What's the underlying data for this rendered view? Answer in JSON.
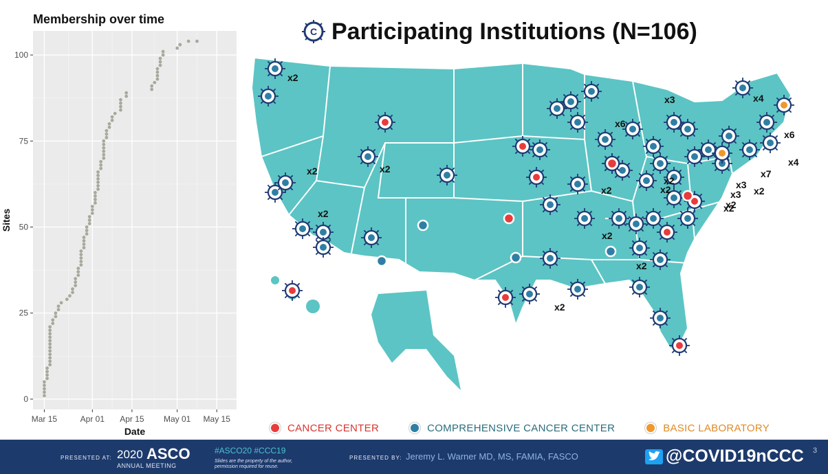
{
  "chart_data": {
    "type": "scatter",
    "title": "Membership over time",
    "xlabel": "Date",
    "ylabel": "Sites",
    "x_ticks": [
      "Mar 15",
      "Apr 01",
      "Apr 15",
      "May 01",
      "May 15"
    ],
    "x_tick_values": [
      "2020-03-15",
      "2020-04-01",
      "2020-04-15",
      "2020-05-01",
      "2020-05-15"
    ],
    "xlim": [
      "2020-03-11",
      "2020-05-22"
    ],
    "y_ticks": [
      0,
      25,
      50,
      75,
      100
    ],
    "ylim": [
      -3,
      107
    ],
    "grid": true,
    "x": [
      "2020-03-15",
      "2020-03-15",
      "2020-03-15",
      "2020-03-15",
      "2020-03-15",
      "2020-03-16",
      "2020-03-16",
      "2020-03-16",
      "2020-03-16",
      "2020-03-17",
      "2020-03-17",
      "2020-03-17",
      "2020-03-17",
      "2020-03-17",
      "2020-03-17",
      "2020-03-17",
      "2020-03-17",
      "2020-03-17",
      "2020-03-17",
      "2020-03-17",
      "2020-03-17",
      "2020-03-18",
      "2020-03-18",
      "2020-03-19",
      "2020-03-19",
      "2020-03-20",
      "2020-03-20",
      "2020-03-21",
      "2020-03-23",
      "2020-03-24",
      "2020-03-25",
      "2020-03-25",
      "2020-03-26",
      "2020-03-26",
      "2020-03-26",
      "2020-03-27",
      "2020-03-27",
      "2020-03-27",
      "2020-03-28",
      "2020-03-28",
      "2020-03-28",
      "2020-03-28",
      "2020-03-28",
      "2020-03-29",
      "2020-03-29",
      "2020-03-29",
      "2020-03-29",
      "2020-03-30",
      "2020-03-30",
      "2020-03-30",
      "2020-03-31",
      "2020-03-31",
      "2020-03-31",
      "2020-04-01",
      "2020-04-01",
      "2020-04-01",
      "2020-04-02",
      "2020-04-02",
      "2020-04-02",
      "2020-04-02",
      "2020-04-03",
      "2020-04-03",
      "2020-04-03",
      "2020-04-03",
      "2020-04-03",
      "2020-04-03",
      "2020-04-04",
      "2020-04-04",
      "2020-04-04",
      "2020-04-05",
      "2020-04-05",
      "2020-04-05",
      "2020-04-05",
      "2020-04-05",
      "2020-04-05",
      "2020-04-06",
      "2020-04-06",
      "2020-04-06",
      "2020-04-07",
      "2020-04-07",
      "2020-04-08",
      "2020-04-08",
      "2020-04-09",
      "2020-04-11",
      "2020-04-11",
      "2020-04-11",
      "2020-04-11",
      "2020-04-13",
      "2020-04-13",
      "2020-04-22",
      "2020-04-22",
      "2020-04-23",
      "2020-04-24",
      "2020-04-24",
      "2020-04-24",
      "2020-04-24",
      "2020-04-25",
      "2020-04-25",
      "2020-04-25",
      "2020-04-26",
      "2020-04-26",
      "2020-05-01",
      "2020-05-02",
      "2020-05-02",
      "2020-05-05",
      "2020-05-08"
    ],
    "y": [
      1,
      2,
      3,
      4,
      5,
      6,
      7,
      8,
      9,
      10,
      11,
      12,
      13,
      14,
      15,
      16,
      17,
      18,
      19,
      20,
      21,
      22,
      23,
      24,
      25,
      26,
      27,
      28,
      29,
      30,
      31,
      32,
      33,
      34,
      35,
      36,
      37,
      38,
      39,
      40,
      41,
      42,
      43,
      44,
      45,
      46,
      47,
      48,
      49,
      50,
      51,
      52,
      53,
      54,
      55,
      56,
      57,
      58,
      59,
      60,
      61,
      62,
      63,
      64,
      65,
      66,
      67,
      68,
      69,
      70,
      71,
      72,
      73,
      74,
      75,
      76,
      77,
      78,
      79,
      80,
      81,
      82,
      83,
      84,
      85,
      86,
      87,
      88,
      89,
      90,
      91,
      92,
      93,
      94,
      95,
      96,
      97,
      98,
      99,
      100,
      101,
      102,
      103,
      103,
      104,
      104
    ]
  },
  "slide": {
    "title": "Participating Institutions (N=106)",
    "logo_text": "C",
    "logo_sub": "19",
    "legend": [
      {
        "label": "CANCER CENTER",
        "color": "#e83b3b",
        "text_color": "#d8352f"
      },
      {
        "label": "COMPREHENSIVE CANCER CENTER",
        "color": "#2f7fa5",
        "text_color": "#2a6d7d"
      },
      {
        "label": "BASIC LABORATORY",
        "color": "#f0982c",
        "text_color": "#e08a26"
      }
    ],
    "map_multipliers": [
      "x2",
      "x2",
      "x2",
      "x2",
      "x2",
      "x3",
      "x6",
      "x4",
      "x6",
      "x4",
      "x7",
      "x3",
      "x3",
      "x2",
      "x2",
      "x2",
      "x2",
      "x2",
      "x2",
      "x2",
      "x2"
    ],
    "map_colors": {
      "land": "#5cc4c4",
      "border": "#ffffff",
      "marker_ring": "#1e3a73"
    }
  },
  "footer": {
    "presented_at": "PRESENTED AT:",
    "year": "2020",
    "brand": "ASCO",
    "meeting": "ANNUAL MEETING",
    "hashtags": "#ASCO20  #CCC19",
    "note": "Slides are the property of the author, permission required for reuse.",
    "presented_by": "PRESENTED BY:",
    "presenter": "Jeremy L. Warner MD, MS, FAMIA, FASCO",
    "twitter_handle": "@COVID19nCCC",
    "page_number": "3"
  }
}
